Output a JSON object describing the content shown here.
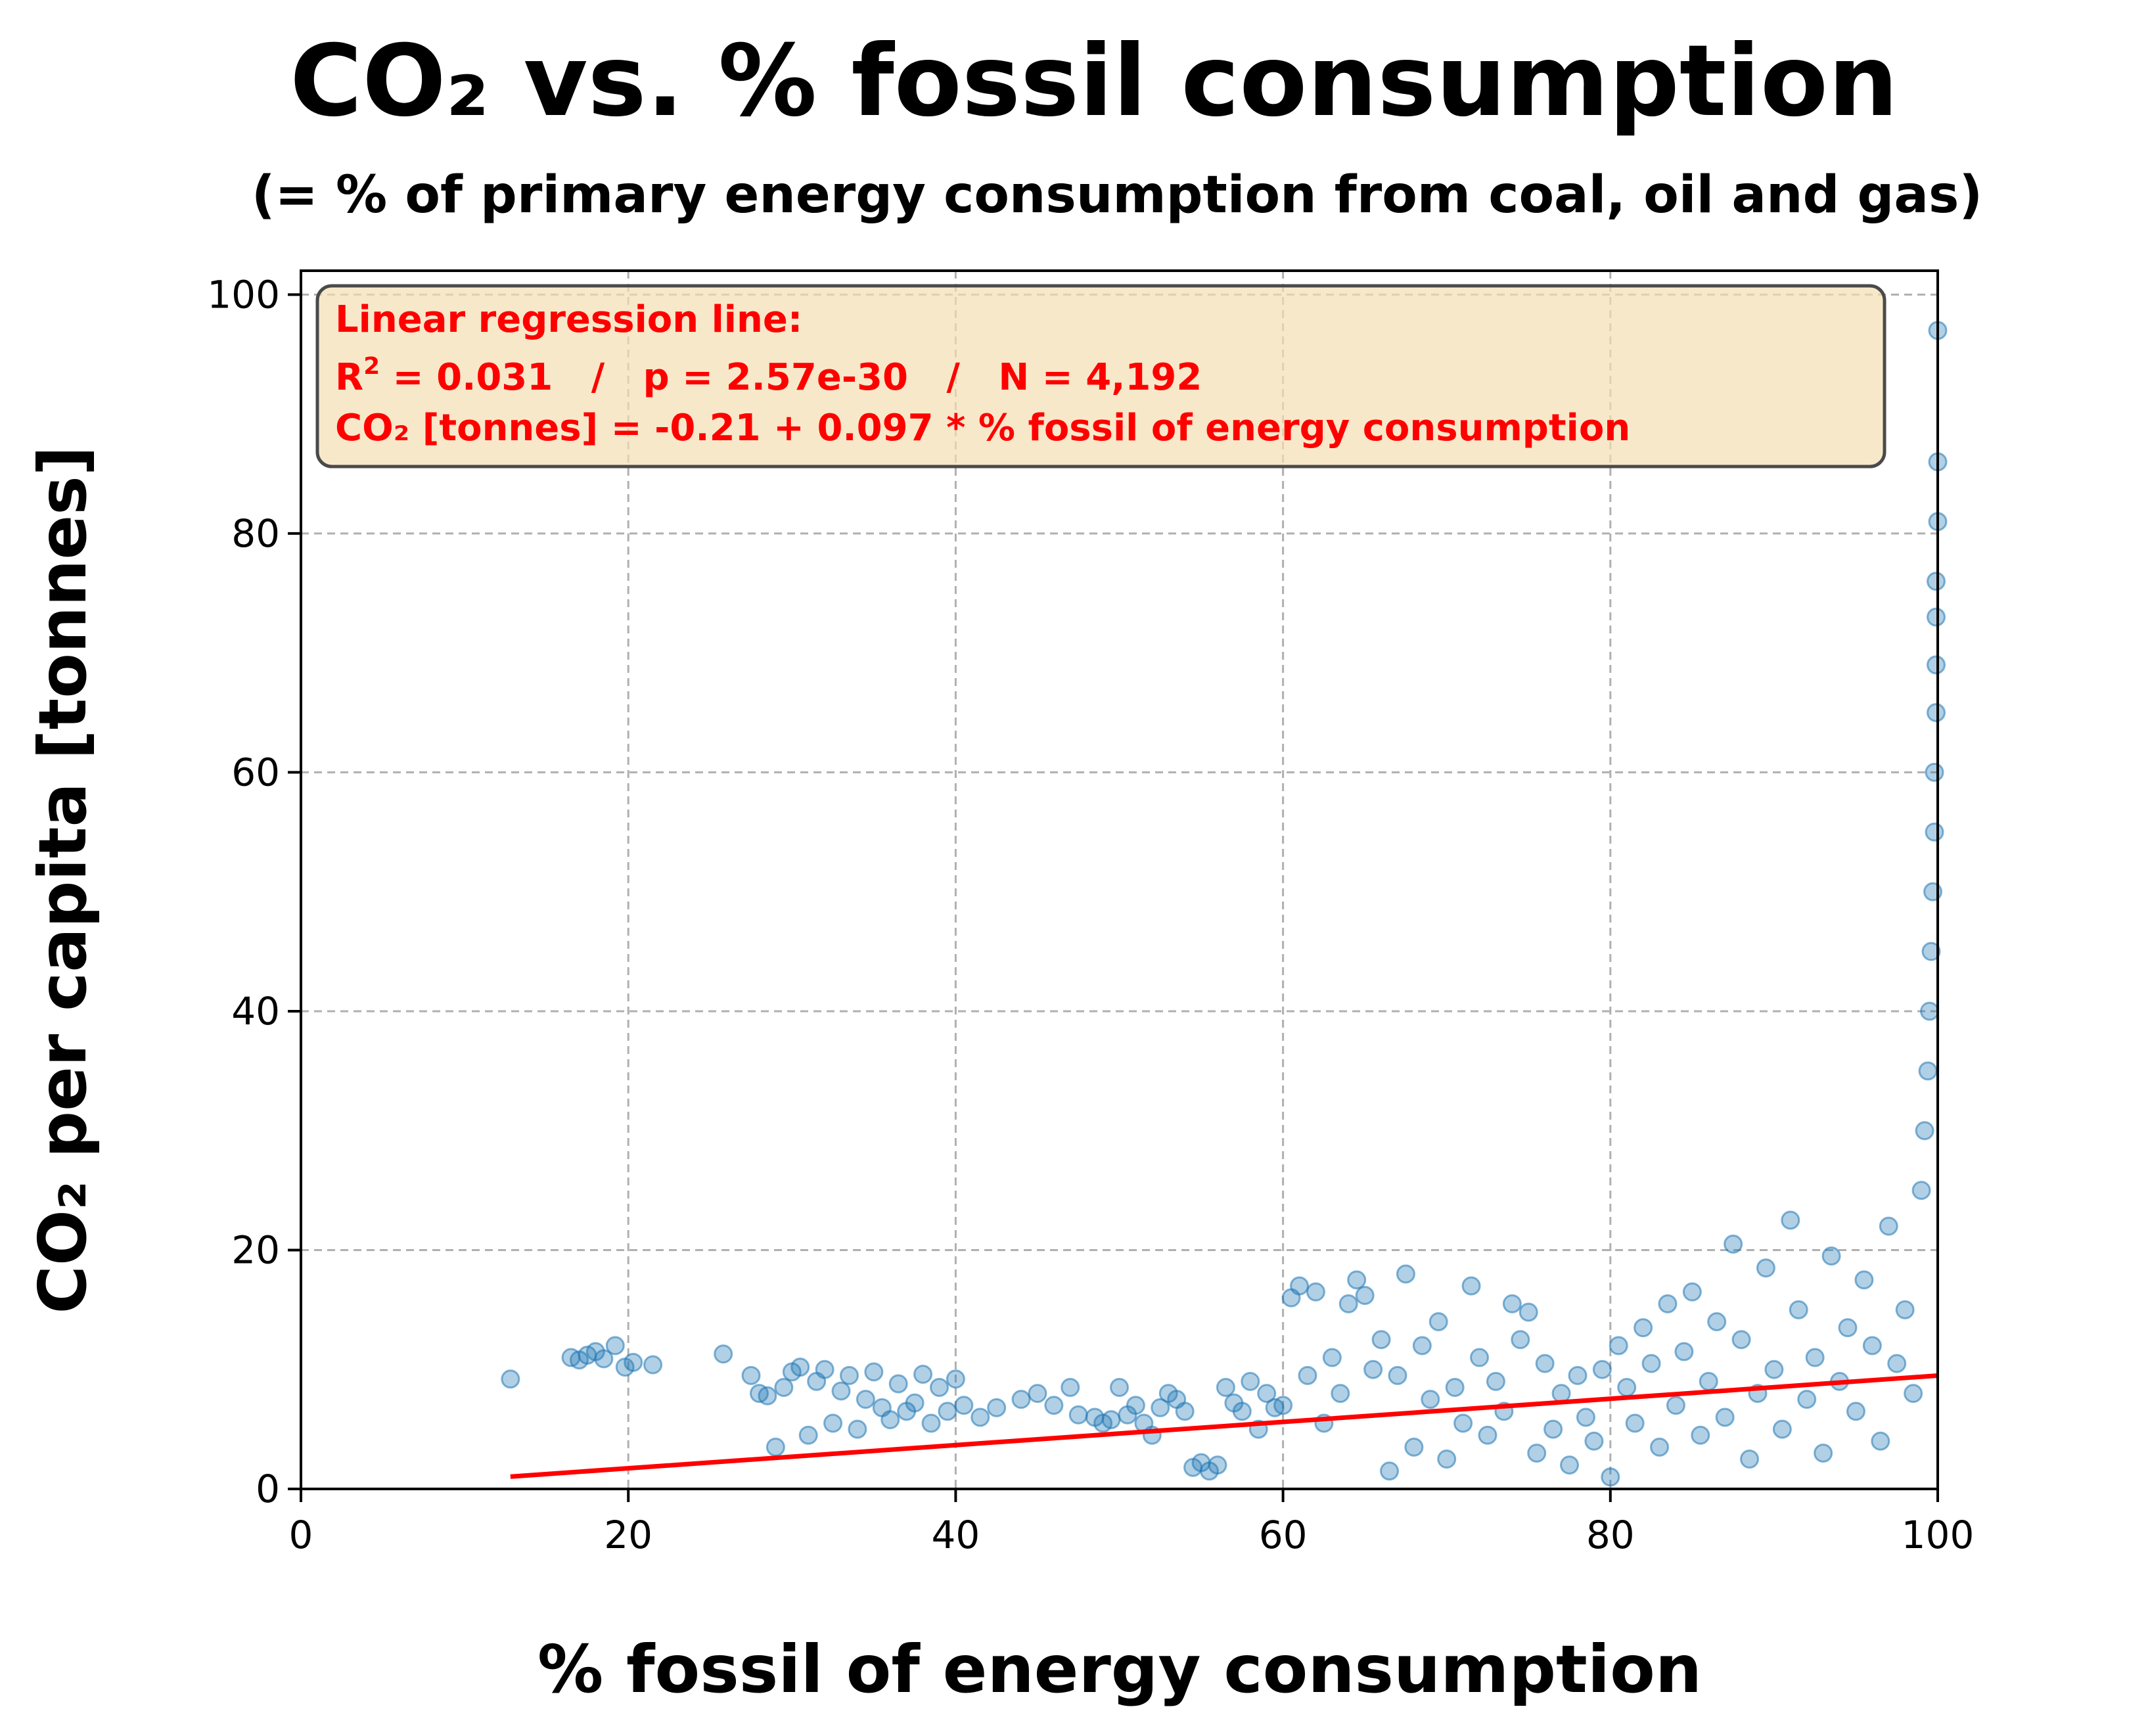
{
  "chart_data": {
    "type": "scatter",
    "title": "CO₂ vs. % fossil consumption",
    "subtitle": "(= % of primary energy consumption from coal, oil and gas)",
    "xlabel": "% fossil of energy consumption",
    "ylabel": "CO₂ per capita [tonnes]",
    "xlim": [
      0,
      100
    ],
    "ylim": [
      0,
      102
    ],
    "xticks": [
      "0",
      "20",
      "40",
      "60",
      "80",
      "100"
    ],
    "xtick_values": [
      0,
      20,
      40,
      60,
      80,
      100
    ],
    "yticks": [
      "0",
      "20",
      "40",
      "60",
      "80",
      "100"
    ],
    "ytick_values": [
      0,
      20,
      40,
      60,
      80,
      100
    ],
    "grid": true,
    "point_color": "#1f77b4",
    "regression_color": "#ff0000",
    "annotation_box_color": "#f5deb3",
    "annotation": {
      "line1": "Linear regression line:",
      "r_label": "R",
      "r_sup": "2",
      "line2_rest": " = 0.031   /   p = 2.57e-30   /   N = 4,192",
      "line3": "CO₂ [tonnes] = -0.21 + 0.097 * % fossil of energy consumption"
    },
    "regression": {
      "intercept": -0.21,
      "slope": 0.097,
      "x_range": [
        12.8,
        100
      ]
    },
    "points": [
      [
        12.8,
        9.2
      ],
      [
        16.5,
        11.0
      ],
      [
        17.0,
        10.8
      ],
      [
        17.5,
        11.2
      ],
      [
        18.0,
        11.5
      ],
      [
        18.5,
        10.9
      ],
      [
        19.2,
        12.0
      ],
      [
        19.8,
        10.2
      ],
      [
        20.3,
        10.6
      ],
      [
        21.5,
        10.4
      ],
      [
        25.8,
        11.3
      ],
      [
        27.5,
        9.5
      ],
      [
        28.0,
        8.0
      ],
      [
        28.5,
        7.8
      ],
      [
        29.0,
        3.5
      ],
      [
        29.5,
        8.5
      ],
      [
        30.0,
        9.8
      ],
      [
        30.5,
        10.2
      ],
      [
        31.0,
        4.5
      ],
      [
        31.5,
        9.0
      ],
      [
        32.0,
        10.0
      ],
      [
        32.5,
        5.5
      ],
      [
        33.0,
        8.2
      ],
      [
        33.5,
        9.5
      ],
      [
        34.0,
        5.0
      ],
      [
        34.5,
        7.5
      ],
      [
        35.0,
        9.8
      ],
      [
        35.5,
        6.8
      ],
      [
        36.0,
        5.8
      ],
      [
        36.5,
        8.8
      ],
      [
        37.0,
        6.5
      ],
      [
        37.5,
        7.2
      ],
      [
        38.0,
        9.6
      ],
      [
        38.5,
        5.5
      ],
      [
        39.0,
        8.5
      ],
      [
        39.5,
        6.5
      ],
      [
        40.0,
        9.2
      ],
      [
        40.5,
        7.0
      ],
      [
        41.5,
        6.0
      ],
      [
        42.5,
        6.8
      ],
      [
        44.0,
        7.5
      ],
      [
        45.0,
        8.0
      ],
      [
        46.0,
        7.0
      ],
      [
        47.0,
        8.5
      ],
      [
        47.5,
        6.2
      ],
      [
        48.5,
        6.0
      ],
      [
        49.0,
        5.5
      ],
      [
        49.5,
        5.8
      ],
      [
        50.0,
        8.5
      ],
      [
        50.5,
        6.2
      ],
      [
        51.0,
        7.0
      ],
      [
        51.5,
        5.5
      ],
      [
        52.0,
        4.5
      ],
      [
        52.5,
        6.8
      ],
      [
        53.0,
        8.0
      ],
      [
        53.5,
        7.5
      ],
      [
        54.0,
        6.5
      ],
      [
        54.5,
        1.8
      ],
      [
        55.0,
        2.2
      ],
      [
        55.5,
        1.5
      ],
      [
        56.0,
        2.0
      ],
      [
        56.5,
        8.5
      ],
      [
        57.0,
        7.2
      ],
      [
        57.5,
        6.5
      ],
      [
        58.0,
        9.0
      ],
      [
        58.5,
        5.0
      ],
      [
        59.0,
        8.0
      ],
      [
        59.5,
        6.8
      ],
      [
        60.0,
        7.0
      ],
      [
        60.5,
        16.0
      ],
      [
        61.0,
        17.0
      ],
      [
        61.5,
        9.5
      ],
      [
        62.0,
        16.5
      ],
      [
        62.5,
        5.5
      ],
      [
        63.0,
        11.0
      ],
      [
        63.5,
        8.0
      ],
      [
        64.0,
        15.5
      ],
      [
        64.5,
        17.5
      ],
      [
        65.0,
        16.2
      ],
      [
        65.5,
        10.0
      ],
      [
        66.0,
        12.5
      ],
      [
        66.5,
        1.5
      ],
      [
        67.0,
        9.5
      ],
      [
        67.5,
        18.0
      ],
      [
        68.0,
        3.5
      ],
      [
        68.5,
        12.0
      ],
      [
        69.0,
        7.5
      ],
      [
        69.5,
        14.0
      ],
      [
        70.0,
        2.5
      ],
      [
        70.5,
        8.5
      ],
      [
        71.0,
        5.5
      ],
      [
        71.5,
        17.0
      ],
      [
        72.0,
        11.0
      ],
      [
        72.5,
        4.5
      ],
      [
        73.0,
        9.0
      ],
      [
        73.5,
        6.5
      ],
      [
        74.0,
        15.5
      ],
      [
        74.5,
        12.5
      ],
      [
        75.0,
        14.8
      ],
      [
        75.5,
        3.0
      ],
      [
        76.0,
        10.5
      ],
      [
        76.5,
        5.0
      ],
      [
        77.0,
        8.0
      ],
      [
        77.5,
        2.0
      ],
      [
        78.0,
        9.5
      ],
      [
        78.5,
        6.0
      ],
      [
        79.0,
        4.0
      ],
      [
        79.5,
        10.0
      ],
      [
        80.0,
        1.0
      ],
      [
        80.5,
        12.0
      ],
      [
        81.0,
        8.5
      ],
      [
        81.5,
        5.5
      ],
      [
        82.0,
        13.5
      ],
      [
        82.5,
        10.5
      ],
      [
        83.0,
        3.5
      ],
      [
        83.5,
        15.5
      ],
      [
        84.0,
        7.0
      ],
      [
        84.5,
        11.5
      ],
      [
        85.0,
        16.5
      ],
      [
        85.5,
        4.5
      ],
      [
        86.0,
        9.0
      ],
      [
        86.5,
        14.0
      ],
      [
        87.0,
        6.0
      ],
      [
        87.5,
        20.5
      ],
      [
        88.0,
        12.5
      ],
      [
        88.5,
        2.5
      ],
      [
        89.0,
        8.0
      ],
      [
        89.5,
        18.5
      ],
      [
        90.0,
        10.0
      ],
      [
        90.5,
        5.0
      ],
      [
        91.0,
        22.5
      ],
      [
        91.5,
        15.0
      ],
      [
        92.0,
        7.5
      ],
      [
        92.5,
        11.0
      ],
      [
        93.0,
        3.0
      ],
      [
        93.5,
        19.5
      ],
      [
        94.0,
        9.0
      ],
      [
        94.5,
        13.5
      ],
      [
        95.0,
        6.5
      ],
      [
        95.5,
        17.5
      ],
      [
        96.0,
        12.0
      ],
      [
        96.5,
        4.0
      ],
      [
        97.0,
        22.0
      ],
      [
        97.5,
        10.5
      ],
      [
        98.0,
        15.0
      ],
      [
        98.5,
        8.0
      ],
      [
        99.0,
        25.0
      ],
      [
        99.2,
        30.0
      ],
      [
        99.4,
        35.0
      ],
      [
        99.5,
        40.0
      ],
      [
        99.6,
        45.0
      ],
      [
        99.7,
        50.0
      ],
      [
        99.8,
        55.0
      ],
      [
        99.8,
        60.0
      ],
      [
        99.9,
        65.0
      ],
      [
        99.9,
        69.0
      ],
      [
        99.9,
        73.0
      ],
      [
        99.9,
        76.0
      ],
      [
        100.0,
        81.0
      ],
      [
        100.0,
        86.0
      ],
      [
        100.0,
        97.0
      ]
    ]
  }
}
